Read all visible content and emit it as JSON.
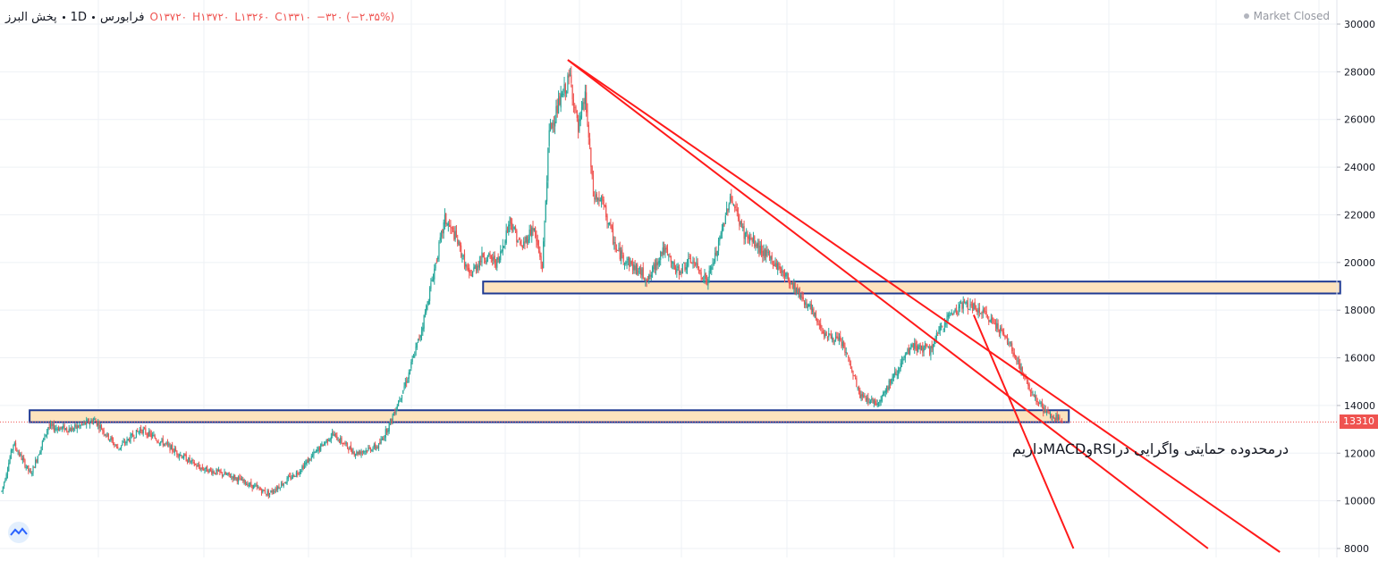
{
  "legend": {
    "symbol": "پخش البرز",
    "interval": "1D",
    "exchange": "فرابورس",
    "open": "O۱۳۷۲۰",
    "high": "H۱۳۷۲۰",
    "low": "L۱۳۲۶۰",
    "close": "C۱۳۳۱۰",
    "change": "−۳۲۰ (−۲.۳۵%)"
  },
  "status": "Market Closed",
  "annotation": "درمحدوده حمایتی واگرایی درRSIوMACDداریم",
  "last_price_label": "13310",
  "colors": {
    "up": "#26a69a",
    "down": "#ef5350",
    "trendline": "#ff1a1a",
    "zone_fill": "#fde3bd",
    "zone_border": "#1f3a93",
    "grid": "#eef1f5"
  },
  "chart_data": {
    "type": "candlestick",
    "y_axis": {
      "min": 8000,
      "max": 30000,
      "ticks": [
        8000,
        10000,
        12000,
        14000,
        16000,
        18000,
        20000,
        22000,
        24000,
        26000,
        28000,
        30000
      ],
      "position": "right"
    },
    "grid": true,
    "price_path": [
      [
        0,
        10400
      ],
      [
        10,
        12400
      ],
      [
        25,
        11100
      ],
      [
        40,
        13100
      ],
      [
        60,
        13000
      ],
      [
        80,
        13400
      ],
      [
        100,
        12200
      ],
      [
        120,
        13000
      ],
      [
        140,
        12400
      ],
      [
        170,
        11400
      ],
      [
        200,
        11000
      ],
      [
        230,
        10300
      ],
      [
        255,
        11200
      ],
      [
        285,
        12800
      ],
      [
        305,
        12000
      ],
      [
        325,
        12300
      ],
      [
        335,
        13300
      ],
      [
        350,
        15200
      ],
      [
        362,
        17200
      ],
      [
        372,
        19500
      ],
      [
        382,
        21800
      ],
      [
        392,
        21000
      ],
      [
        403,
        19400
      ],
      [
        415,
        20300
      ],
      [
        428,
        20000
      ],
      [
        438,
        21800
      ],
      [
        448,
        20600
      ],
      [
        458,
        21500
      ],
      [
        466,
        19800
      ],
      [
        472,
        25500
      ],
      [
        480,
        26600
      ],
      [
        490,
        27800
      ],
      [
        497,
        25500
      ],
      [
        503,
        27000
      ],
      [
        510,
        22800
      ],
      [
        518,
        22500
      ],
      [
        530,
        20500
      ],
      [
        545,
        19800
      ],
      [
        558,
        19300
      ],
      [
        570,
        20600
      ],
      [
        582,
        19600
      ],
      [
        595,
        20100
      ],
      [
        608,
        19200
      ],
      [
        618,
        20700
      ],
      [
        628,
        22800
      ],
      [
        640,
        21200
      ],
      [
        655,
        20500
      ],
      [
        668,
        19900
      ],
      [
        680,
        19200
      ],
      [
        695,
        18200
      ],
      [
        710,
        17000
      ],
      [
        725,
        16600
      ],
      [
        740,
        14400
      ],
      [
        755,
        14100
      ],
      [
        770,
        15300
      ],
      [
        785,
        16500
      ],
      [
        800,
        16300
      ],
      [
        815,
        17700
      ],
      [
        830,
        18300
      ],
      [
        845,
        17900
      ],
      [
        858,
        17400
      ],
      [
        872,
        16300
      ],
      [
        885,
        14800
      ],
      [
        900,
        13700
      ],
      [
        914,
        13310
      ]
    ],
    "trendlines": [
      {
        "from": {
          "bar": 488,
          "price": 28500
        },
        "to": {
          "bar": 1040,
          "price": 8000
        }
      },
      {
        "from": {
          "bar": 488,
          "price": 28500
        },
        "to": {
          "bar": 1102,
          "price": 7850
        }
      },
      {
        "from": {
          "bar": 838,
          "price": 17800
        },
        "to": {
          "bar": 924,
          "price": 8000
        }
      }
    ],
    "zones": [
      {
        "name": "support",
        "price_low": 13300,
        "price_high": 13800,
        "from_bar": 24,
        "to_bar": 920
      },
      {
        "name": "resistance",
        "price_low": 18700,
        "price_high": 19200,
        "from_bar": 415,
        "to_bar": 1154
      }
    ],
    "last_price": 13310
  }
}
